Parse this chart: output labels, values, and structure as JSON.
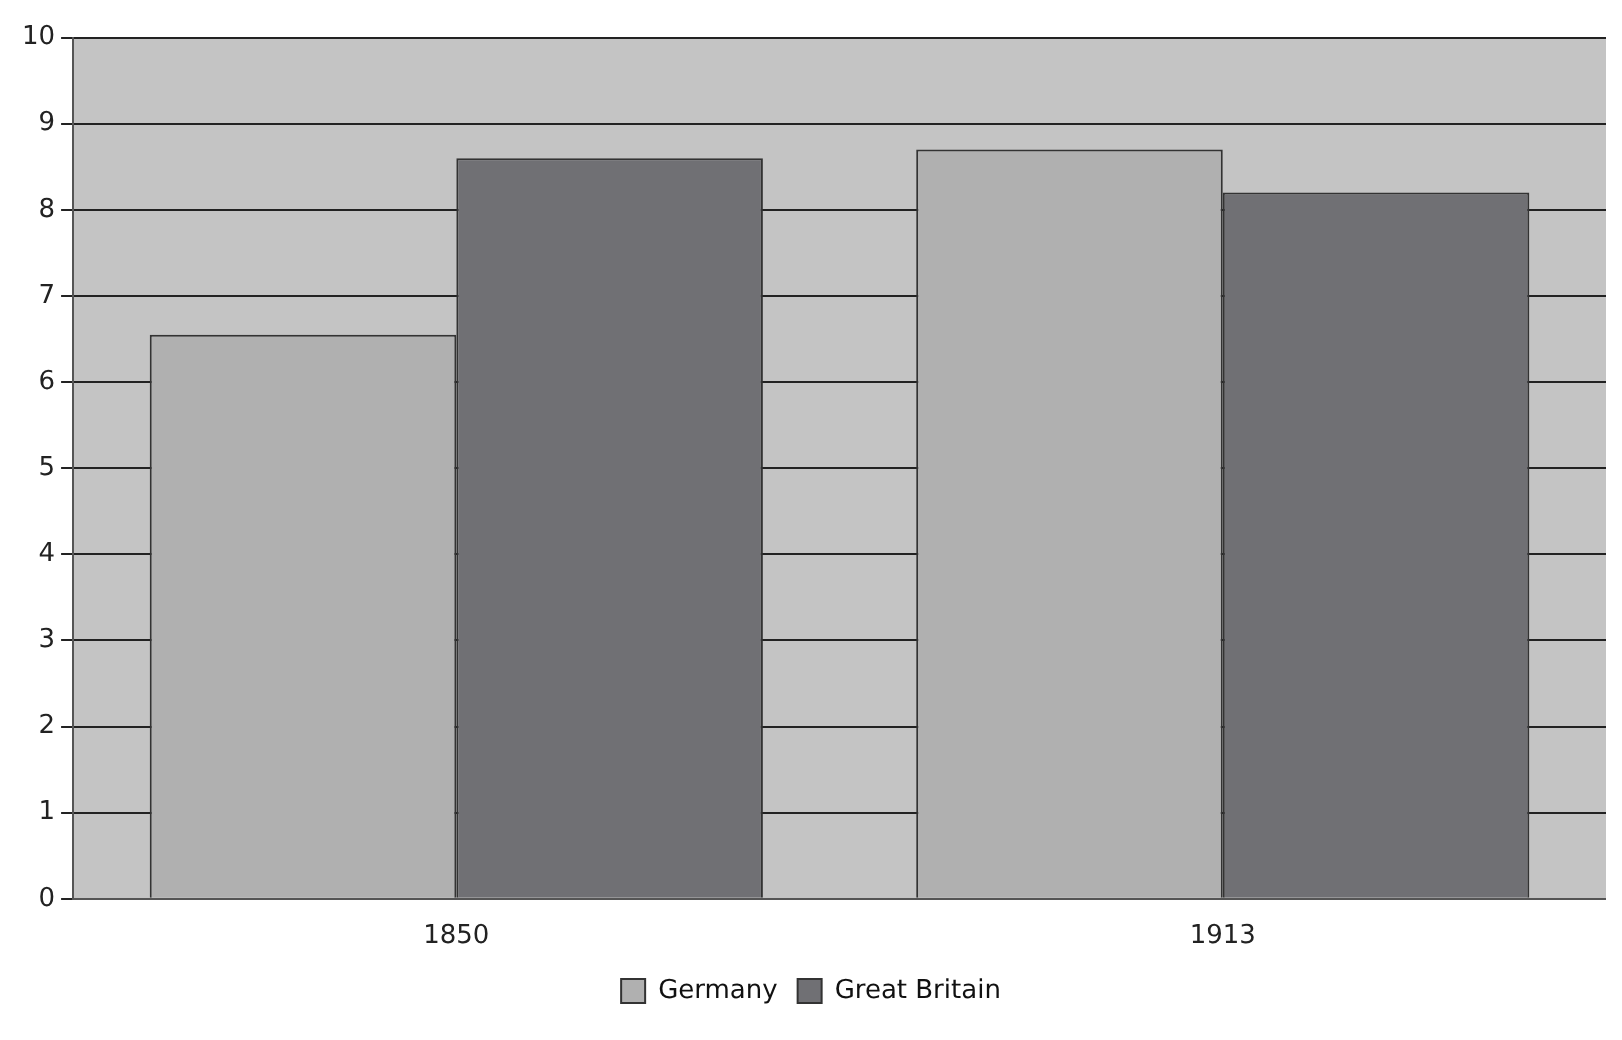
{
  "chart_data": {
    "type": "bar",
    "categories": [
      "1850",
      "1913"
    ],
    "series": [
      {
        "name": "Germany",
        "color": "#b0b0b0",
        "values": [
          6.55,
          8.7
        ]
      },
      {
        "name": "Great Britain",
        "color": "#707074",
        "values": [
          8.6,
          8.2
        ]
      }
    ],
    "ylim": [
      0,
      10
    ],
    "yticks": [
      0,
      1,
      2,
      3,
      4,
      5,
      6,
      7,
      8,
      9,
      10
    ],
    "grid": "y",
    "legend": "bottom"
  }
}
